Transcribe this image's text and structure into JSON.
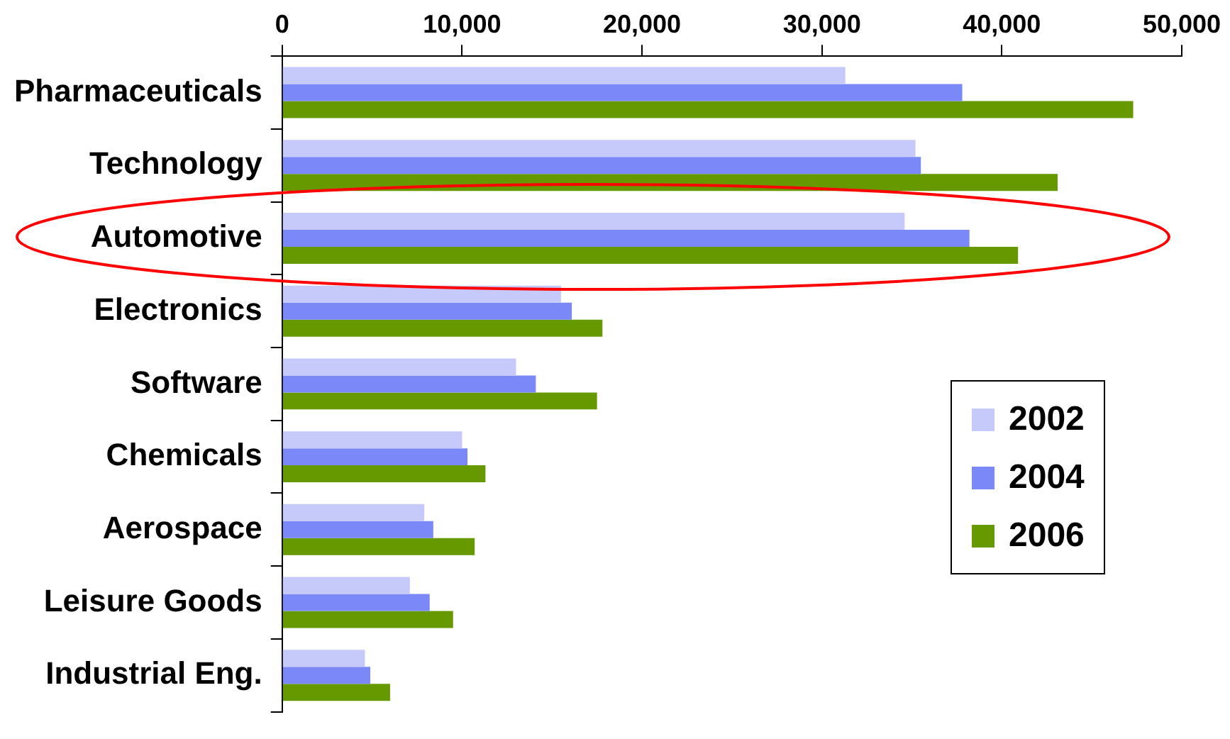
{
  "chart_data": {
    "type": "bar",
    "orientation": "horizontal",
    "categories": [
      "Pharmaceuticals",
      "Technology",
      "Automotive",
      "Electronics",
      "Software",
      "Chemicals",
      "Aerospace",
      "Leisure Goods",
      "Industrial Eng."
    ],
    "series": [
      {
        "name": "2002",
        "color": "#c5cafb",
        "values": [
          31300,
          35200,
          34600,
          15500,
          13000,
          10000,
          7900,
          7100,
          4600
        ]
      },
      {
        "name": "2004",
        "color": "#7a88f8",
        "values": [
          37800,
          35500,
          38200,
          16100,
          14100,
          10300,
          8400,
          8200,
          4900
        ]
      },
      {
        "name": "2006",
        "color": "#669900",
        "values": [
          47300,
          43100,
          40900,
          17800,
          17500,
          11300,
          10700,
          9500,
          6000
        ]
      }
    ],
    "xlim": [
      0,
      50000
    ],
    "xticks": [
      {
        "value": 0,
        "label": "0"
      },
      {
        "value": 10000,
        "label": "10,000"
      },
      {
        "value": 20000,
        "label": "20,000"
      },
      {
        "value": 30000,
        "label": "30,000"
      },
      {
        "value": 40000,
        "label": "40,000"
      },
      {
        "value": 50000,
        "label": "50,000"
      }
    ],
    "grid": false,
    "legend": "right"
  }
}
